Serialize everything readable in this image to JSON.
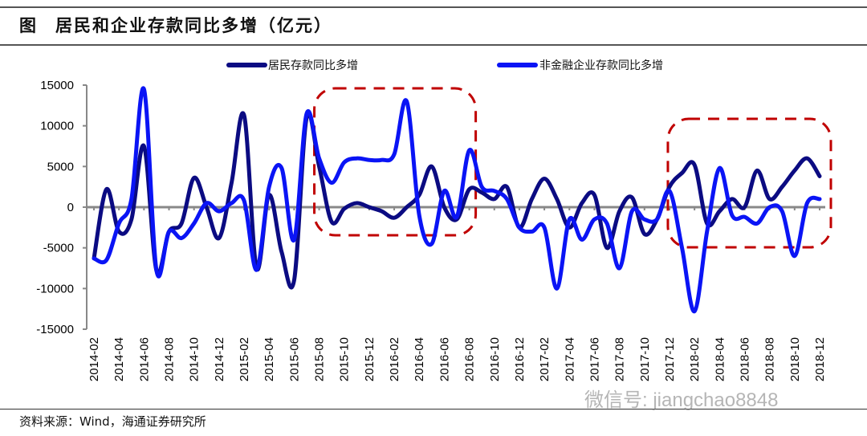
{
  "header": {
    "figure_label": "图",
    "title": "居民和企业存款同比多增（亿元）"
  },
  "footer": {
    "source": "资料来源：Wind，海通证券研究所"
  },
  "watermark": "微信号: jiangchao8848",
  "colors": {
    "household": "#0b0b82",
    "corporate": "#0a14f5",
    "highlight": "#c00000",
    "axis": "#888888"
  },
  "chart_data": {
    "type": "line",
    "title": "居民和企业存款同比多增（亿元）",
    "xlabel": "",
    "ylabel": "",
    "ylim": [
      -15000,
      15000
    ],
    "yticks": [
      15000,
      10000,
      5000,
      0,
      -5000,
      -10000,
      -15000
    ],
    "x": [
      "2014-02",
      "2014-03",
      "2014-04",
      "2014-05",
      "2014-06",
      "2014-07",
      "2014-08",
      "2014-09",
      "2014-10",
      "2014-11",
      "2014-12",
      "2015-01",
      "2015-02",
      "2015-03",
      "2015-04",
      "2015-05",
      "2015-06",
      "2015-07",
      "2015-08",
      "2015-09",
      "2015-10",
      "2015-11",
      "2015-12",
      "2016-01",
      "2016-02",
      "2016-03",
      "2016-04",
      "2016-05",
      "2016-06",
      "2016-07",
      "2016-08",
      "2016-09",
      "2016-10",
      "2016-11",
      "2016-12",
      "2017-01",
      "2017-02",
      "2017-03",
      "2017-04",
      "2017-05",
      "2017-06",
      "2017-07",
      "2017-08",
      "2017-09",
      "2017-10",
      "2017-11",
      "2017-12",
      "2018-01",
      "2018-02",
      "2018-03",
      "2018-04",
      "2018-05",
      "2018-06",
      "2018-07",
      "2018-08",
      "2018-09",
      "2018-10",
      "2018-11",
      "2018-12"
    ],
    "xtick_labels": [
      "2014-02",
      "2014-04",
      "2014-06",
      "2014-08",
      "2014-10",
      "2014-12",
      "2015-02",
      "2015-04",
      "2015-06",
      "2015-08",
      "2015-10",
      "2015-12",
      "2016-02",
      "2016-04",
      "2016-06",
      "2016-08",
      "2016-10",
      "2016-12",
      "2017-02",
      "2017-04",
      "2017-06",
      "2017-08",
      "2017-10",
      "2017-12",
      "2018-02",
      "2018-04",
      "2018-06",
      "2018-08",
      "2018-10",
      "2018-12"
    ],
    "legend_position": "top",
    "series": [
      {
        "name": "居民存款同比多增",
        "values": [
          -6300,
          2200,
          -3000,
          -1500,
          7500,
          -7800,
          -3000,
          -2000,
          3600,
          0,
          -3800,
          3000,
          11300,
          -7500,
          1500,
          -5500,
          -9000,
          11000,
          5000,
          -1800,
          -200,
          500,
          0,
          -500,
          -1300,
          0,
          1500,
          5000,
          0,
          -1500,
          2200,
          1800,
          1000,
          2500,
          -2500,
          1000,
          3500,
          1000,
          -2500,
          500,
          1500,
          -5000,
          -500,
          1200,
          -3300,
          -1500,
          2500,
          4200,
          5200,
          -2000,
          -500,
          1000,
          0,
          4500,
          1000,
          2500,
          4500,
          6000,
          3800
        ]
      },
      {
        "name": "非金融企业存款同比多增",
        "values": [
          -6300,
          -6500,
          -2000,
          1000,
          14500,
          -7800,
          -3000,
          -3800,
          -2000,
          500,
          -500,
          500,
          800,
          -7700,
          2500,
          4800,
          -4000,
          11500,
          6000,
          3000,
          5500,
          6000,
          5800,
          5800,
          6500,
          13000,
          -1000,
          -4500,
          2000,
          -1200,
          7000,
          2500,
          2000,
          1000,
          -2500,
          -3000,
          -2500,
          -10000,
          -1500,
          -4000,
          -1500,
          -2000,
          -7500,
          -500,
          -1500,
          -1500,
          2000,
          -5000,
          -12800,
          -3000,
          4800,
          -1000,
          -1200,
          -2000,
          0,
          -500,
          -6000,
          500,
          1000
        ]
      }
    ],
    "annotations": [
      {
        "type": "dashed-box",
        "from": "2015-08",
        "to": "2016-08"
      },
      {
        "type": "dashed-box",
        "from": "2017-12",
        "to": "2018-12"
      }
    ]
  }
}
